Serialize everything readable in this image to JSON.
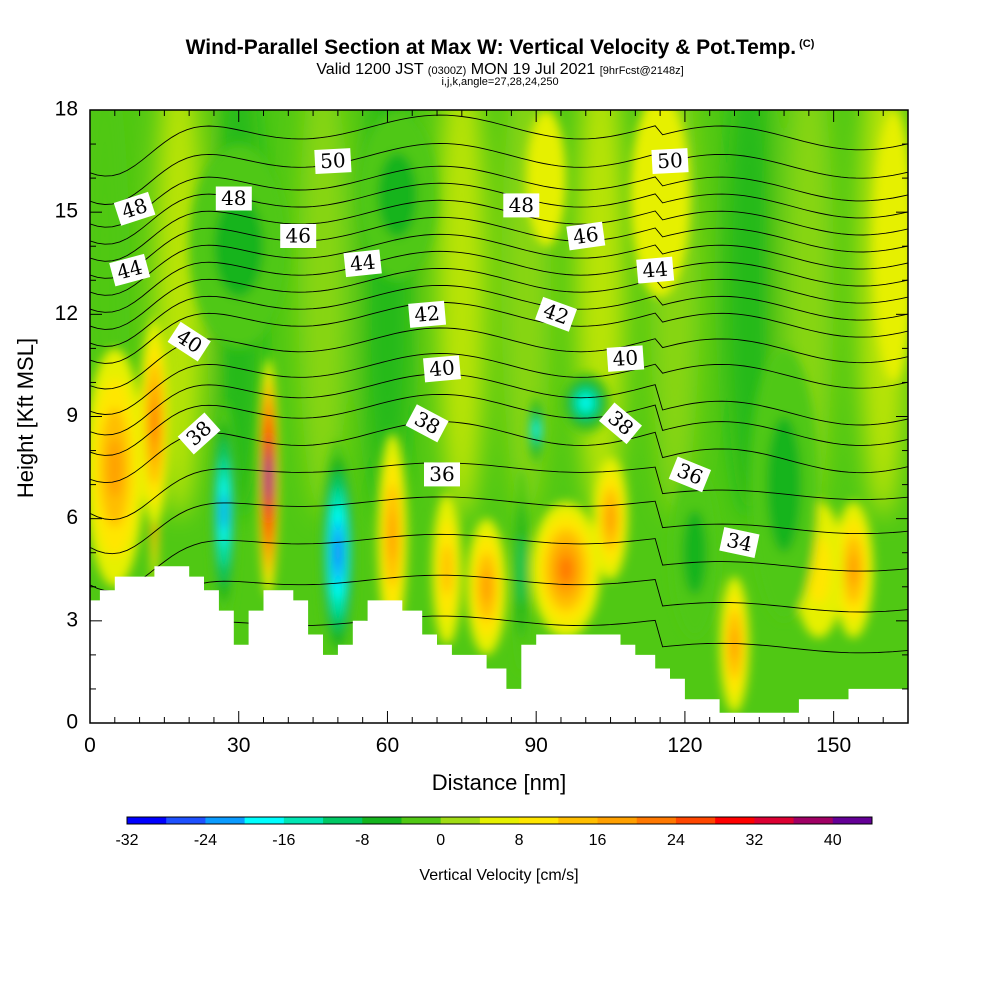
{
  "title": "Wind-Parallel Section at Max W: Vertical Velocity & Pot.Temp.",
  "title_mark": "(C)",
  "subtitle": {
    "valid": "Valid 1200 JST",
    "utc": "(0300Z)",
    "date": "MON 19 Jul 2021",
    "forecast": "[9hrFcst@2148z]"
  },
  "subline": "i,j,k,angle=27,28,24,250",
  "chart_data": {
    "type": "heatmap",
    "title": "Wind-Parallel Section at Max W: Vertical Velocity & Pot.Temp.",
    "xlabel": "Distance [nm]",
    "ylabel": "Height [Kft MSL]",
    "xlim": [
      0,
      165
    ],
    "ylim": [
      0,
      18
    ],
    "x_ticks": [
      0,
      30,
      60,
      90,
      120,
      150
    ],
    "y_ticks": [
      0,
      3,
      6,
      9,
      12,
      15,
      18
    ],
    "colorbar": {
      "label": "Vertical Velocity [cm/s]",
      "ticks": [
        -32,
        -24,
        -16,
        -8,
        0,
        8,
        16,
        24,
        32,
        40
      ],
      "levels": [
        -32,
        -28,
        -24,
        -20,
        -16,
        -12,
        -8,
        -4,
        0,
        4,
        8,
        12,
        16,
        20,
        24,
        28,
        32,
        36,
        40,
        44
      ],
      "colors": [
        "#0000ff",
        "#1e50ff",
        "#0a9bff",
        "#00ffff",
        "#00e6b4",
        "#00c864",
        "#14b41e",
        "#50c814",
        "#a0dc14",
        "#e6f000",
        "#ffe600",
        "#ffbe00",
        "#ffa000",
        "#ff7800",
        "#ff4600",
        "#ff0000",
        "#dc0032",
        "#a00064",
        "#640096"
      ]
    },
    "terrain": [
      [
        0,
        3.6
      ],
      [
        2,
        3.6
      ],
      [
        2,
        3.9
      ],
      [
        5,
        3.9
      ],
      [
        5,
        4.3
      ],
      [
        13,
        4.3
      ],
      [
        13,
        4.6
      ],
      [
        20,
        4.6
      ],
      [
        20,
        4.3
      ],
      [
        23,
        4.3
      ],
      [
        23,
        3.9
      ],
      [
        26,
        3.9
      ],
      [
        26,
        3.3
      ],
      [
        29,
        3.3
      ],
      [
        29,
        2.3
      ],
      [
        32,
        2.3
      ],
      [
        32,
        3.3
      ],
      [
        35,
        3.3
      ],
      [
        35,
        3.9
      ],
      [
        41,
        3.9
      ],
      [
        41,
        3.6
      ],
      [
        44,
        3.6
      ],
      [
        44,
        2.6
      ],
      [
        47,
        2.6
      ],
      [
        47,
        2.0
      ],
      [
        50,
        2.0
      ],
      [
        50,
        2.3
      ],
      [
        53,
        2.3
      ],
      [
        53,
        3.0
      ],
      [
        56,
        3.0
      ],
      [
        56,
        3.6
      ],
      [
        63,
        3.6
      ],
      [
        63,
        3.3
      ],
      [
        67,
        3.3
      ],
      [
        67,
        2.6
      ],
      [
        70,
        2.6
      ],
      [
        70,
        2.3
      ],
      [
        73,
        2.3
      ],
      [
        73,
        2.0
      ],
      [
        80,
        2.0
      ],
      [
        80,
        1.6
      ],
      [
        84,
        1.6
      ],
      [
        84,
        1.0
      ],
      [
        87,
        1.0
      ],
      [
        87,
        2.3
      ],
      [
        90,
        2.3
      ],
      [
        90,
        2.6
      ],
      [
        107,
        2.6
      ],
      [
        107,
        2.3
      ],
      [
        110,
        2.3
      ],
      [
        110,
        2.0
      ],
      [
        114,
        2.0
      ],
      [
        114,
        1.6
      ],
      [
        117,
        1.6
      ],
      [
        117,
        1.3
      ],
      [
        120,
        1.3
      ],
      [
        120,
        0.7
      ],
      [
        127,
        0.7
      ],
      [
        127,
        0.3
      ],
      [
        143,
        0.3
      ],
      [
        143,
        0.7
      ],
      [
        153,
        0.7
      ],
      [
        153,
        1.0
      ],
      [
        165,
        1.0
      ]
    ],
    "features": [
      {
        "name": "updraft",
        "x": 13,
        "y": 8.0,
        "w": 1.0,
        "h": 4.0,
        "value": 38
      },
      {
        "name": "updraft",
        "x": 13,
        "y": 8.8,
        "w": 3.0,
        "h": 3.0,
        "value": 18
      },
      {
        "name": "updraft",
        "x": 5,
        "y": 7.5,
        "w": 6.0,
        "h": 3.5,
        "value": 14
      },
      {
        "name": "downdraft",
        "x": 27,
        "y": 6.2,
        "w": 2.5,
        "h": 3.2,
        "value": -24
      },
      {
        "name": "updraft",
        "x": 36,
        "y": 7.2,
        "w": 2.0,
        "h": 3.5,
        "value": 42
      },
      {
        "name": "downdraft",
        "x": 50,
        "y": 5.0,
        "w": 3.5,
        "h": 3.3,
        "value": -26
      },
      {
        "name": "updraft",
        "x": 61,
        "y": 5.5,
        "w": 3.0,
        "h": 3.0,
        "value": 16
      },
      {
        "name": "updraft",
        "x": 72,
        "y": 4.5,
        "w": 3.0,
        "h": 2.2,
        "value": 12
      },
      {
        "name": "updraft",
        "x": 80,
        "y": 4.0,
        "w": 4.0,
        "h": 2.0,
        "value": 16
      },
      {
        "name": "downdraft",
        "x": 87,
        "y": 4.5,
        "w": 1.5,
        "h": 3.0,
        "value": -10
      },
      {
        "name": "downdraft",
        "x": 90,
        "y": 8.6,
        "w": 1.5,
        "h": 1.0,
        "value": -20
      },
      {
        "name": "downdraft",
        "x": 100,
        "y": 9.4,
        "w": 5.0,
        "h": 0.9,
        "value": -20
      },
      {
        "name": "updraft",
        "x": 96,
        "y": 4.5,
        "w": 7.0,
        "h": 2.0,
        "value": 20
      },
      {
        "name": "updraft",
        "x": 105,
        "y": 6.0,
        "w": 3.5,
        "h": 1.8,
        "value": 14
      },
      {
        "name": "updraft",
        "x": 130,
        "y": 2.3,
        "w": 3.0,
        "h": 2.0,
        "value": 14
      },
      {
        "name": "updraft",
        "x": 154,
        "y": 4.5,
        "w": 4.0,
        "h": 2.0,
        "value": 16
      },
      {
        "name": "updraft",
        "x": 147,
        "y": 4.5,
        "w": 5.0,
        "h": 2.0,
        "value": 6
      },
      {
        "name": "downdraft",
        "x": 122,
        "y": 5.0,
        "w": 5.0,
        "h": 2.5,
        "value": -6
      },
      {
        "name": "downdraft",
        "x": 140,
        "y": 7.0,
        "w": 7.0,
        "h": 4.0,
        "value": -6
      },
      {
        "name": "updraft",
        "x": 115,
        "y": 15.5,
        "w": 6.0,
        "h": 3.0,
        "value": 4
      },
      {
        "name": "downdraft",
        "x": 62,
        "y": 15.5,
        "w": 8.0,
        "h": 2.5,
        "value": -6
      },
      {
        "name": "downdraft",
        "x": 30,
        "y": 14.0,
        "w": 10.0,
        "h": 3.0,
        "value": -6
      },
      {
        "name": "updraft",
        "x": 92,
        "y": 16.0,
        "w": 4.0,
        "h": 2.0,
        "value": 4
      },
      {
        "name": "updraft",
        "x": 162,
        "y": 14.0,
        "w": 4.0,
        "h": 4.0,
        "value": 4
      }
    ],
    "contour_labels": [
      {
        "text": "50",
        "x": 49,
        "y": 16.5,
        "angle": -3
      },
      {
        "text": "50",
        "x": 117,
        "y": 16.5,
        "angle": -3
      },
      {
        "text": "48",
        "x": 9,
        "y": 15.1,
        "angle": -18
      },
      {
        "text": "48",
        "x": 29,
        "y": 15.4,
        "angle": 0
      },
      {
        "text": "48",
        "x": 87,
        "y": 15.2,
        "angle": 0
      },
      {
        "text": "46",
        "x": 42,
        "y": 14.3,
        "angle": 0
      },
      {
        "text": "46",
        "x": 100,
        "y": 14.3,
        "angle": -8
      },
      {
        "text": "44",
        "x": 8,
        "y": 13.3,
        "angle": -15
      },
      {
        "text": "44",
        "x": 55,
        "y": 13.5,
        "angle": -6
      },
      {
        "text": "44",
        "x": 114,
        "y": 13.3,
        "angle": -5
      },
      {
        "text": "42",
        "x": 68,
        "y": 12.0,
        "angle": -5
      },
      {
        "text": "42",
        "x": 94,
        "y": 12.0,
        "angle": 20
      },
      {
        "text": "40",
        "x": 20,
        "y": 11.2,
        "angle": 33
      },
      {
        "text": "40",
        "x": 71,
        "y": 10.4,
        "angle": -5
      },
      {
        "text": "40",
        "x": 108,
        "y": 10.7,
        "angle": -4
      },
      {
        "text": "38",
        "x": 22,
        "y": 8.5,
        "angle": -42
      },
      {
        "text": "38",
        "x": 68,
        "y": 8.8,
        "angle": 28
      },
      {
        "text": "38",
        "x": 107,
        "y": 8.8,
        "angle": 40
      },
      {
        "text": "36",
        "x": 71,
        "y": 7.3,
        "angle": 0
      },
      {
        "text": "36",
        "x": 121,
        "y": 7.3,
        "angle": 22
      },
      {
        "text": "34",
        "x": 131,
        "y": 5.3,
        "angle": 12
      }
    ]
  }
}
